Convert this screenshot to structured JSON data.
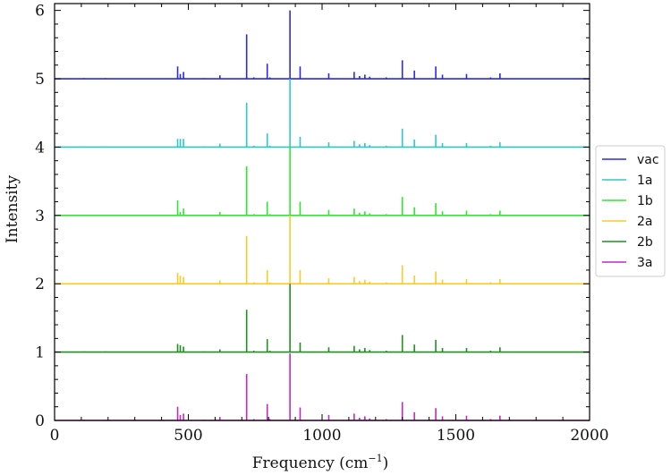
{
  "chart_data": {
    "type": "line",
    "title": "",
    "xlabel": "Frequency (cm",
    "xlabel_sup": "−1",
    "xlabel_close": ")",
    "ylabel": "Intensity",
    "xlim": [
      0,
      2000
    ],
    "ylim": [
      0,
      6.1
    ],
    "xticks": [
      0,
      500,
      1000,
      1500,
      2000
    ],
    "xtick_labels": [
      "0",
      "500",
      "1000",
      "1500",
      "2000"
    ],
    "yticks": [
      0,
      1,
      2,
      3,
      4,
      5,
      6
    ],
    "ytick_labels": [
      "0",
      "1",
      "2",
      "3",
      "4",
      "5",
      "6"
    ],
    "grid": false,
    "legend_position": "right",
    "peak_positions": [
      110,
      190,
      460,
      470,
      482,
      560,
      618,
      718,
      745,
      795,
      805,
      880,
      918,
      1025,
      1120,
      1140,
      1160,
      1178,
      1240,
      1300,
      1345,
      1425,
      1450,
      1540,
      1630,
      1665
    ],
    "series": [
      {
        "name": "vac",
        "offset": 5,
        "color": "#2a2adf",
        "values": [
          0.01,
          0.01,
          0.18,
          0.07,
          0.1,
          0.01,
          0.05,
          0.65,
          0.02,
          0.22,
          0.02,
          1.0,
          0.18,
          0.08,
          0.1,
          0.04,
          0.06,
          0.03,
          0.02,
          0.27,
          0.12,
          0.18,
          0.06,
          0.07,
          0.02,
          0.08
        ]
      },
      {
        "name": "1a",
        "offset": 4,
        "color": "#2ec7c7",
        "values": [
          0.01,
          0.01,
          0.12,
          0.12,
          0.12,
          0.01,
          0.05,
          0.65,
          0.02,
          0.2,
          0.02,
          1.0,
          0.15,
          0.07,
          0.09,
          0.04,
          0.06,
          0.03,
          0.02,
          0.27,
          0.11,
          0.18,
          0.06,
          0.06,
          0.02,
          0.07
        ]
      },
      {
        "name": "1b",
        "offset": 3,
        "color": "#2ee82e",
        "values": [
          0.01,
          0.01,
          0.22,
          0.05,
          0.1,
          0.01,
          0.05,
          0.72,
          0.02,
          0.2,
          0.02,
          1.0,
          0.2,
          0.08,
          0.1,
          0.04,
          0.06,
          0.03,
          0.02,
          0.27,
          0.12,
          0.18,
          0.06,
          0.07,
          0.02,
          0.07
        ]
      },
      {
        "name": "2a",
        "offset": 2,
        "color": "#f5cc2a",
        "values": [
          0.01,
          0.01,
          0.16,
          0.12,
          0.1,
          0.01,
          0.05,
          0.7,
          0.02,
          0.2,
          0.02,
          1.0,
          0.2,
          0.08,
          0.1,
          0.04,
          0.06,
          0.03,
          0.02,
          0.27,
          0.12,
          0.18,
          0.06,
          0.07,
          0.02,
          0.07
        ]
      },
      {
        "name": "2b",
        "offset": 1,
        "color": "#1f8f1f",
        "values": [
          0.01,
          0.01,
          0.12,
          0.1,
          0.08,
          0.01,
          0.04,
          0.62,
          0.02,
          0.19,
          0.02,
          1.0,
          0.14,
          0.07,
          0.09,
          0.04,
          0.06,
          0.03,
          0.02,
          0.25,
          0.11,
          0.18,
          0.06,
          0.06,
          0.02,
          0.07
        ]
      },
      {
        "name": "3a",
        "offset": 0,
        "color": "#bf2abf",
        "values": [
          0.01,
          0.01,
          0.2,
          0.08,
          0.1,
          0.01,
          0.05,
          0.68,
          0.02,
          0.24,
          0.02,
          0.98,
          0.19,
          0.08,
          0.1,
          0.04,
          0.06,
          0.03,
          0.02,
          0.27,
          0.12,
          0.18,
          0.06,
          0.07,
          0.02,
          0.07
        ]
      }
    ]
  }
}
